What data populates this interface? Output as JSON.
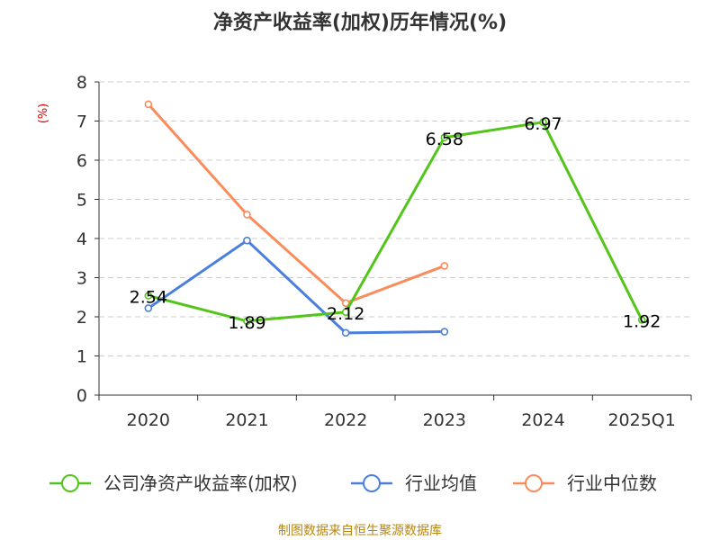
{
  "chart_data": {
    "type": "line",
    "title": "净资产收益率(加权)历年情况(%)",
    "ylabel": "(%)",
    "xlabel": "",
    "categories": [
      "2020",
      "2021",
      "2022",
      "2023",
      "2024",
      "2025Q1"
    ],
    "ylim": [
      0,
      8
    ],
    "yticks": [
      0,
      1,
      2,
      3,
      4,
      5,
      6,
      7,
      8
    ],
    "grid": true,
    "legend_position": "bottom",
    "series": [
      {
        "name": "公司净资产收益率(加权)",
        "color": "#52c41a",
        "values": [
          2.54,
          1.89,
          2.12,
          6.58,
          6.97,
          1.92
        ],
        "show_labels": true
      },
      {
        "name": "行业均值",
        "color": "#4a7fdd",
        "values": [
          2.22,
          3.95,
          1.59,
          1.62,
          null,
          null
        ],
        "show_labels": false
      },
      {
        "name": "行业中位数",
        "color": "#f98c5a",
        "values": [
          7.43,
          4.61,
          2.35,
          3.3,
          null,
          null
        ],
        "show_labels": false
      }
    ]
  },
  "source": "制图数据来自恒生聚源数据库"
}
